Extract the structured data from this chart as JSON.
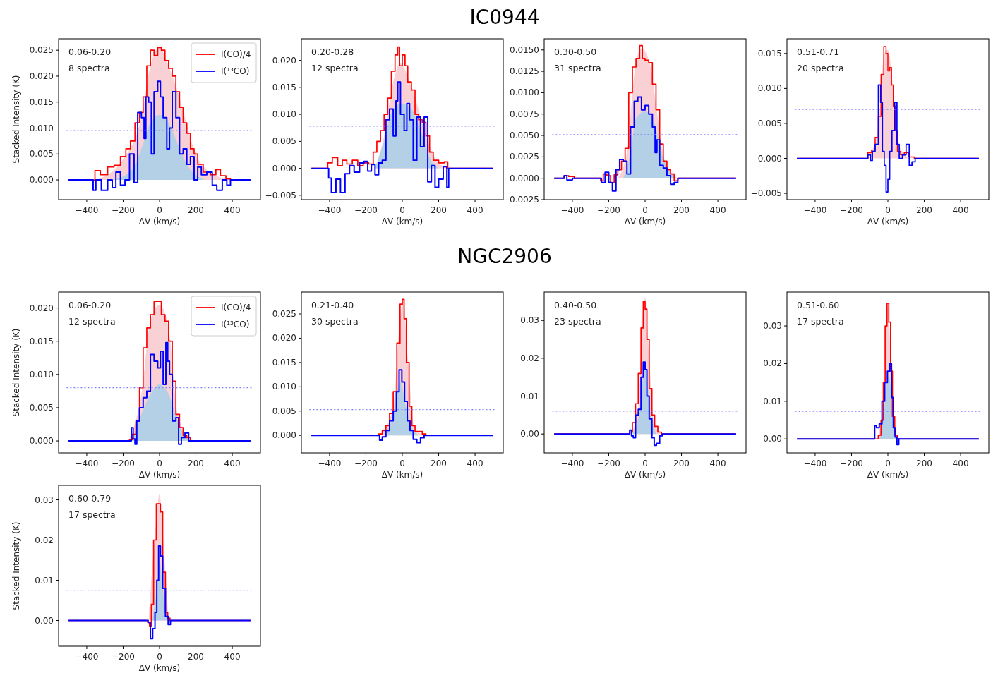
{
  "chart_data": [
    {
      "type": "step",
      "xlabel": "ΔV (km/s)",
      "ylabel": "Stacked Intensity (K)",
      "annotations": [
        "0.06-0.20",
        "8 spectra"
      ],
      "legend": "top right",
      "xlim": [
        -555,
        555
      ],
      "xticks": [
        -400,
        -200,
        0,
        200,
        400
      ],
      "ylim": [
        -0.0038,
        0.0272
      ],
      "yticks": [
        {
          "value": 0,
          "label": "0.000"
        },
        0.005,
        {
          "value": 0.01,
          "label": "0.010"
        },
        0.015,
        {
          "value": 0.02,
          "label": "0.020"
        },
        0.025
      ],
      "ref_lines": [
        {
          "axis": "y",
          "value": 0.0095,
          "color": "#8080ff",
          "line_style": "dotted"
        }
      ],
      "series": [
        {
          "type": "area",
          "color": "#f9d0d4",
          "x": [
            -350,
            -200,
            -100,
            -50,
            0,
            50,
            100,
            200,
            300,
            400
          ],
          "values": [
            0,
            0.004,
            0.012,
            0.022,
            0.0255,
            0.022,
            0.017,
            0.005,
            0.001,
            0
          ]
        },
        {
          "type": "area",
          "color": "#b4d0e6",
          "x": [
            -250,
            -150,
            -100,
            -50,
            0,
            50,
            100,
            150,
            250
          ],
          "values": [
            0,
            0.002,
            0.006,
            0.011,
            0.0125,
            0.011,
            0.007,
            0.003,
            0
          ]
        },
        {
          "name": "I(CO)/4",
          "color": "#ff0000",
          "x": [
            -500,
            -360,
            -350,
            -300,
            -270,
            -230,
            -200,
            -170,
            -150,
            -120,
            -100,
            -80,
            -60,
            -40,
            -20,
            0,
            20,
            40,
            60,
            80,
            100,
            120,
            140,
            160,
            180,
            200,
            220,
            260,
            300,
            320,
            350,
            380,
            400,
            500
          ],
          "values": [
            0,
            0,
            0.0018,
            0.001,
            0.0025,
            0.0028,
            0.0045,
            0.006,
            0.0075,
            0.011,
            0.013,
            0.016,
            0.022,
            0.025,
            0.024,
            0.0255,
            0.025,
            0.023,
            0.0215,
            0.02,
            0.017,
            0.014,
            0.011,
            0.009,
            0.006,
            0.005,
            0.003,
            0.0015,
            0.001,
            0.002,
            0.0008,
            0.0002,
            0,
            0
          ]
        },
        {
          "name": "I(¹³CO)",
          "color": "#0000ff",
          "x": [
            -500,
            -370,
            -360,
            -340,
            -300,
            -270,
            -250,
            -230,
            -200,
            -180,
            -150,
            -130,
            -110,
            -90,
            -80,
            -70,
            -50,
            -40,
            -20,
            0,
            10,
            30,
            50,
            60,
            80,
            100,
            120,
            140,
            160,
            180,
            200,
            220,
            240,
            280,
            300,
            330,
            360,
            380,
            400,
            500
          ],
          "values": [
            0,
            0,
            -0.002,
            0,
            -0.002,
            0,
            -0.0015,
            0.0015,
            -0.001,
            0,
            0.005,
            -0.0005,
            0.013,
            0.012,
            0.008,
            0.016,
            0.015,
            0.005,
            0.017,
            0.019,
            0.016,
            0.012,
            0.006,
            0.01,
            0.017,
            0.012,
            0.005,
            0.006,
            0.003,
            0.0045,
            0,
            0.0025,
            0.001,
            0.0015,
            -0.001,
            -0.002,
            0,
            -0.001,
            0,
            0
          ]
        }
      ]
    },
    {
      "type": "step",
      "title": "IC0944",
      "xlabel": "ΔV (km/s)",
      "annotations": [
        "0.20-0.28",
        "12 spectra"
      ],
      "xlim": [
        -555,
        555
      ],
      "xticks": [
        -400,
        -200,
        0,
        200,
        400
      ],
      "ylim": [
        -0.0058,
        0.024
      ],
      "yticks": [
        -0.005,
        {
          "value": 0,
          "label": "0.000"
        },
        0.005,
        {
          "value": 0.01,
          "label": "0.010"
        },
        0.015,
        {
          "value": 0.02,
          "label": "0.020"
        }
      ],
      "ref_lines": [
        {
          "axis": "y",
          "value": 0.0078,
          "color": "#8080ff",
          "line_style": "dotted"
        }
      ],
      "series": [
        {
          "type": "area",
          "color": "#f9d0d4",
          "x": [
            -150,
            -100,
            -50,
            -10,
            30,
            80,
            130,
            200,
            260
          ],
          "values": [
            0,
            0.006,
            0.016,
            0.0195,
            0.017,
            0.012,
            0.006,
            0.001,
            0
          ]
        },
        {
          "type": "area",
          "color": "#b4d0e6",
          "x": [
            -150,
            -100,
            -50,
            0,
            50,
            100,
            150,
            200
          ],
          "values": [
            0,
            0.005,
            0.011,
            0.012,
            0.011,
            0.007,
            0.002,
            0
          ]
        },
        {
          "color": "#ff0000",
          "x": [
            -500,
            -420,
            -400,
            -370,
            -340,
            -320,
            -290,
            -260,
            -230,
            -200,
            -170,
            -150,
            -130,
            -110,
            -90,
            -70,
            -50,
            -30,
            -20,
            -10,
            10,
            20,
            40,
            60,
            80,
            100,
            120,
            140,
            160,
            180,
            220,
            240,
            260,
            500
          ],
          "values": [
            0,
            0,
            0.001,
            0.002,
            0.0005,
            0.0015,
            0.0008,
            0.0015,
            0.0005,
            0.001,
            0.0008,
            0.003,
            0.005,
            0.007,
            0.01,
            0.013,
            0.018,
            0.021,
            0.0225,
            0.019,
            0.021,
            0.019,
            0.016,
            0.0145,
            0.01,
            0.009,
            0.0085,
            0.006,
            0.003,
            0.0015,
            0.001,
            0.0012,
            0,
            0
          ]
        },
        {
          "color": "#0000ff",
          "x": [
            -500,
            -410,
            -400,
            -380,
            -350,
            -330,
            -300,
            -280,
            -250,
            -220,
            -200,
            -180,
            -160,
            -140,
            -120,
            -100,
            -80,
            -60,
            -40,
            -30,
            -20,
            0,
            20,
            30,
            50,
            70,
            90,
            110,
            130,
            150,
            170,
            190,
            210,
            240,
            250,
            260,
            500
          ],
          "values": [
            0,
            0,
            -0.0018,
            -0.0045,
            -0.002,
            -0.0045,
            -0.001,
            0.0005,
            -0.0007,
            0.001,
            0.0013,
            -0.0005,
            0.0007,
            -0.0012,
            0.001,
            0.0015,
            0.009,
            0.011,
            0.006,
            0.0125,
            0.016,
            0.01,
            0.007,
            0.012,
            0.009,
            0.0015,
            0.0095,
            0.004,
            0.0095,
            -0.0025,
            0.0005,
            -0.0035,
            -0.002,
            0.0003,
            -0.0035,
            0,
            0
          ]
        }
      ]
    },
    {
      "type": "step",
      "xlabel": "ΔV (km/s)",
      "annotations": [
        "0.30-0.50",
        "31 spectra"
      ],
      "xlim": [
        -555,
        555
      ],
      "xticks": [
        -400,
        -200,
        0,
        200,
        400
      ],
      "ylim": [
        -0.0025,
        0.0163
      ],
      "yticks": [
        {
          "value": -0.0025,
          "label": "−0.0025"
        },
        {
          "value": 0,
          "label": "0.0000"
        },
        {
          "value": 0.0025,
          "label": "0.0025"
        },
        {
          "value": 0.005,
          "label": "0.0050"
        },
        {
          "value": 0.0075,
          "label": "0.0075"
        },
        {
          "value": 0.01,
          "label": "0.0100"
        },
        {
          "value": 0.0125,
          "label": "0.0125"
        },
        {
          "value": 0.015,
          "label": "0.0150"
        }
      ],
      "ref_lines": [
        {
          "axis": "y",
          "value": 0.0051,
          "color": "#8080ff",
          "line_style": "dotted"
        }
      ],
      "series": [
        {
          "type": "area",
          "color": "#f9d0d4",
          "x": [
            -150,
            -100,
            -60,
            -20,
            30,
            70,
            110,
            180
          ],
          "values": [
            0,
            0.003,
            0.012,
            0.0152,
            0.013,
            0.007,
            0.002,
            0
          ]
        },
        {
          "type": "area",
          "color": "#b4d0e6",
          "x": [
            -120,
            -80,
            -50,
            0,
            50,
            90,
            130,
            170
          ],
          "values": [
            0,
            0.003,
            0.007,
            0.0078,
            0.0065,
            0.003,
            0.001,
            0
          ]
        },
        {
          "color": "#ff0000",
          "x": [
            -500,
            -450,
            -440,
            -400,
            -380,
            -250,
            -240,
            -220,
            -200,
            -180,
            -160,
            -140,
            -120,
            -100,
            -80,
            -60,
            -40,
            -20,
            -10,
            10,
            30,
            50,
            70,
            90,
            110,
            130,
            150,
            170,
            190,
            500
          ],
          "values": [
            0,
            0,
            0.0003,
            0.0002,
            0,
            0,
            -0.0003,
            0.0005,
            0.0003,
            -0.0005,
            0.0004,
            0.001,
            0.002,
            0.0035,
            0.01,
            0.013,
            0.014,
            0.0155,
            0.014,
            0.0138,
            0.0135,
            0.011,
            0.008,
            0.004,
            0.002,
            0.001,
            0.0005,
            -0.0003,
            0,
            0
          ]
        },
        {
          "color": "#0000ff",
          "x": [
            -500,
            -450,
            -440,
            -420,
            -380,
            -250,
            -230,
            -210,
            -190,
            -170,
            -150,
            -130,
            -110,
            -90,
            -70,
            -50,
            -30,
            -10,
            10,
            30,
            50,
            60,
            70,
            90,
            110,
            130,
            150,
            170,
            190,
            500
          ],
          "values": [
            0,
            0,
            0.0003,
            -0.0002,
            0,
            0,
            -0.0005,
            0.0007,
            -0.0005,
            -0.0015,
            0.001,
            0.0022,
            0.002,
            0.0005,
            0.006,
            0.009,
            0.0095,
            0.008,
            0.0085,
            0.0075,
            0.006,
            0.003,
            0.0045,
            0.0015,
            0.0012,
            0.0003,
            -0.0007,
            -0.0005,
            0,
            0
          ]
        }
      ]
    },
    {
      "type": "step",
      "xlabel": "ΔV (km/s)",
      "annotations": [
        "0.51-0.71",
        "20 spectra"
      ],
      "xlim": [
        -555,
        555
      ],
      "xticks": [
        -400,
        -200,
        0,
        200,
        400
      ],
      "ylim": [
        -0.0059,
        0.0171
      ],
      "yticks": [
        -0.005,
        {
          "value": 0,
          "label": "0.000"
        },
        0.005,
        {
          "value": 0.01,
          "label": "0.010"
        },
        0.015
      ],
      "ref_lines": [
        {
          "axis": "y",
          "value": 0.007,
          "color": "#8080ff",
          "line_style": "dotted"
        }
      ],
      "series": [
        {
          "type": "area",
          "color": "#f9d0d4",
          "x": [
            -110,
            -50,
            -20,
            0,
            30,
            60,
            120
          ],
          "values": [
            0,
            0.005,
            0.015,
            0.0155,
            0.01,
            0.002,
            0
          ]
        },
        {
          "color": "#ff0000",
          "x": [
            -500,
            -120,
            -100,
            -80,
            -60,
            -45,
            -30,
            -15,
            -5,
            5,
            15,
            25,
            35,
            45,
            60,
            80,
            100,
            130,
            160,
            500
          ],
          "values": [
            0,
            0,
            0.0008,
            0.0012,
            0.003,
            0.006,
            0.012,
            0.016,
            0.015,
            0.0125,
            0.013,
            0.0105,
            0.0075,
            0.004,
            0.001,
            0.0005,
            0.0008,
            0.0002,
            0,
            0
          ]
        },
        {
          "color": "#0000ff",
          "x": [
            -500,
            -120,
            -100,
            -90,
            -80,
            -60,
            -45,
            -35,
            -25,
            -15,
            -5,
            5,
            15,
            30,
            45,
            55,
            70,
            90,
            110,
            125,
            140,
            160,
            500
          ],
          "values": [
            0,
            0,
            0.0005,
            -0.0003,
            0.001,
            0.002,
            0.0105,
            0.008,
            0.001,
            -0.001,
            -0.0048,
            -0.003,
            0.001,
            0.004,
            0.008,
            0.002,
            0,
            0.0005,
            0.002,
            -0.001,
            -0.0005,
            0,
            0
          ]
        }
      ]
    },
    {
      "type": "step",
      "xlabel": "ΔV (km/s)",
      "ylabel": "Stacked Intensity (K)",
      "annotations": [
        "0.06-0.20",
        "12 spectra"
      ],
      "legend": "top right",
      "xlim": [
        -555,
        555
      ],
      "xticks": [
        -400,
        -200,
        0,
        200,
        400
      ],
      "ylim": [
        -0.0018,
        0.0224
      ],
      "yticks": [
        {
          "value": 0,
          "label": "0.000"
        },
        0.005,
        {
          "value": 0.01,
          "label": "0.010"
        },
        0.015,
        {
          "value": 0.02,
          "label": "0.020"
        }
      ],
      "ref_lines": [
        {
          "axis": "y",
          "value": 0.008,
          "color": "#8080ff",
          "line_style": "dotted"
        }
      ],
      "series": [
        {
          "type": "area",
          "color": "#f9d0d4",
          "x": [
            -170,
            -100,
            -50,
            0,
            50,
            100,
            180
          ],
          "values": [
            0,
            0.007,
            0.018,
            0.0205,
            0.017,
            0.004,
            0
          ]
        },
        {
          "type": "area",
          "color": "#b4d0e6",
          "x": [
            -150,
            -100,
            -50,
            0,
            50,
            100,
            160
          ],
          "values": [
            0,
            0.004,
            0.007,
            0.0085,
            0.007,
            0.003,
            0
          ]
        },
        {
          "name": "I(CO)/4",
          "color": "#ff0000",
          "x": [
            -500,
            -170,
            -160,
            -140,
            -120,
            -100,
            -80,
            -60,
            -40,
            -20,
            0,
            20,
            40,
            60,
            80,
            100,
            120,
            140,
            160,
            180,
            500
          ],
          "values": [
            0,
            0,
            0.0002,
            0.001,
            0.003,
            0.008,
            0.014,
            0.017,
            0.019,
            0.021,
            0.021,
            0.019,
            0.018,
            0.015,
            0.009,
            0.004,
            0.002,
            0.0008,
            0.0005,
            0,
            0
          ]
        },
        {
          "name": "I(¹³CO)",
          "color": "#0000ff",
          "x": [
            -500,
            -160,
            -150,
            -140,
            -130,
            -120,
            -100,
            -80,
            -60,
            -40,
            -20,
            0,
            10,
            30,
            40,
            50,
            60,
            80,
            100,
            110,
            130,
            150,
            170,
            500
          ],
          "values": [
            0,
            0,
            0.002,
            0.0003,
            -0.0005,
            0.003,
            0.005,
            0.0065,
            0.0075,
            0.013,
            0.012,
            0.011,
            0.0135,
            0.0085,
            0.0148,
            0.012,
            0.01,
            0.003,
            0.0035,
            -0.0005,
            0.0005,
            0.0012,
            0,
            0
          ]
        }
      ]
    },
    {
      "type": "step",
      "title": "NGC2906",
      "xlabel": "ΔV (km/s)",
      "annotations": [
        "0.21-0.40",
        "30 spectra"
      ],
      "xlim": [
        -555,
        555
      ],
      "xticks": [
        -400,
        -200,
        0,
        200,
        400
      ],
      "ylim": [
        -0.0036,
        0.0295
      ],
      "yticks": [
        {
          "value": 0,
          "label": "0.000"
        },
        0.005,
        {
          "value": 0.01,
          "label": "0.010"
        },
        0.015,
        {
          "value": 0.02,
          "label": "0.020"
        },
        0.025
      ],
      "ref_lines": [
        {
          "axis": "y",
          "value": 0.0053,
          "color": "#8080ff",
          "line_style": "dotted"
        }
      ],
      "series": [
        {
          "type": "area",
          "color": "#f9d0d4",
          "x": [
            -120,
            -50,
            -10,
            5,
            30,
            70,
            140
          ],
          "values": [
            0,
            0.006,
            0.025,
            0.028,
            0.016,
            0.001,
            0
          ]
        },
        {
          "type": "area",
          "color": "#b4d0e6",
          "x": [
            -100,
            -50,
            -10,
            20,
            60,
            100
          ],
          "values": [
            0,
            0.004,
            0.011,
            0.006,
            0.001,
            0
          ]
        },
        {
          "color": "#ff0000",
          "x": [
            -500,
            -140,
            -120,
            -100,
            -80,
            -60,
            -40,
            -20,
            -5,
            5,
            15,
            30,
            45,
            60,
            80,
            100,
            120,
            140,
            500
          ],
          "values": [
            0,
            0,
            0.0003,
            0.001,
            0.002,
            0.0045,
            0.009,
            0.019,
            0.027,
            0.028,
            0.024,
            0.015,
            0.006,
            0.002,
            0.0008,
            0.0008,
            0.0003,
            0,
            0
          ]
        },
        {
          "color": "#0000ff",
          "x": [
            -500,
            -130,
            -120,
            -100,
            -80,
            -60,
            -40,
            -25,
            -10,
            5,
            20,
            35,
            50,
            70,
            90,
            110,
            130,
            500
          ],
          "values": [
            0,
            0,
            -0.001,
            -0.0003,
            0.001,
            0.003,
            0.005,
            0.009,
            0.0135,
            0.011,
            0.007,
            0.003,
            0.001,
            -0.0008,
            -0.0015,
            -0.0005,
            0,
            0
          ]
        }
      ]
    },
    {
      "type": "step",
      "xlabel": "ΔV (km/s)",
      "annotations": [
        "0.40-0.50",
        "23 spectra"
      ],
      "xlim": [
        -555,
        555
      ],
      "xticks": [
        -400,
        -200,
        0,
        200,
        400
      ],
      "ylim": [
        -0.005,
        0.0375
      ],
      "yticks": [
        {
          "value": 0,
          "label": "0.00"
        },
        0.01,
        0.02,
        0.03
      ],
      "ref_lines": [
        {
          "axis": "y",
          "value": 0.006,
          "color": "#8080ff",
          "line_style": "dotted"
        }
      ],
      "series": [
        {
          "type": "area",
          "color": "#f9d0d4",
          "x": [
            -80,
            -40,
            -10,
            0,
            20,
            50,
            90
          ],
          "values": [
            0,
            0.006,
            0.033,
            0.036,
            0.022,
            0.003,
            0
          ]
        },
        {
          "type": "area",
          "color": "#b4d0e6",
          "x": [
            -70,
            -30,
            0,
            30,
            60
          ],
          "values": [
            0,
            0.006,
            0.018,
            0.006,
            0
          ]
        },
        {
          "color": "#ff0000",
          "x": [
            -500,
            -90,
            -80,
            -60,
            -45,
            -30,
            -15,
            -5,
            5,
            15,
            30,
            45,
            60,
            80,
            100,
            500
          ],
          "values": [
            0,
            0,
            0.0005,
            0.003,
            0.008,
            0.016,
            0.028,
            0.035,
            0.033,
            0.025,
            0.012,
            0.005,
            0.002,
            0.0005,
            0,
            0
          ]
        },
        {
          "color": "#0000ff",
          "x": [
            -500,
            -90,
            -80,
            -70,
            -60,
            -45,
            -30,
            -15,
            -5,
            5,
            15,
            30,
            45,
            55,
            70,
            90,
            100,
            500
          ],
          "values": [
            0,
            0,
            0.001,
            -0.0005,
            -0.001,
            0.005,
            0.0065,
            0.015,
            0.019,
            0.017,
            0.01,
            0.004,
            -0.001,
            -0.003,
            -0.0025,
            -0.0005,
            0,
            0
          ]
        }
      ]
    },
    {
      "type": "step",
      "xlabel": "ΔV (km/s)",
      "annotations": [
        "0.51-0.60",
        "17 spectra"
      ],
      "xlim": [
        -555,
        555
      ],
      "xticks": [
        -400,
        -200,
        0,
        200,
        400
      ],
      "ylim": [
        -0.0037,
        0.039
      ],
      "yticks": [
        {
          "value": 0,
          "label": "0.00"
        },
        0.01,
        0.02,
        0.03
      ],
      "ref_lines": [
        {
          "axis": "y",
          "value": 0.0073,
          "color": "#8080ff",
          "line_style": "dotted"
        }
      ],
      "series": [
        {
          "type": "area",
          "color": "#f9d0d4",
          "x": [
            -60,
            -20,
            0,
            20,
            50
          ],
          "values": [
            0,
            0.012,
            0.036,
            0.015,
            0
          ]
        },
        {
          "type": "area",
          "color": "#b4d0e6",
          "x": [
            -50,
            -20,
            5,
            30,
            55
          ],
          "values": [
            0,
            0.008,
            0.017,
            0.005,
            0
          ]
        },
        {
          "color": "#ff0000",
          "x": [
            -500,
            -60,
            -45,
            -30,
            -20,
            -10,
            0,
            10,
            20,
            30,
            45,
            60,
            500
          ],
          "values": [
            0,
            0,
            0.001,
            0.005,
            0.015,
            0.03,
            0.036,
            0.031,
            0.018,
            0.006,
            0.001,
            0,
            0
          ]
        },
        {
          "color": "#0000ff",
          "x": [
            -500,
            -75,
            -70,
            -55,
            -40,
            -25,
            -10,
            5,
            15,
            25,
            35,
            45,
            55,
            65,
            500
          ],
          "values": [
            0,
            0,
            0.0035,
            0.003,
            0.004,
            0.01,
            0.015,
            0.018,
            0.02,
            0.011,
            0.003,
            0.0005,
            -0.0015,
            0,
            0
          ]
        }
      ]
    },
    {
      "type": "step",
      "xlabel": "ΔV (km/s)",
      "ylabel": "Stacked Intensity (K)",
      "annotations": [
        "0.60-0.79",
        "17 spectra"
      ],
      "xlim": [
        -555,
        555
      ],
      "xticks": [
        -400,
        -200,
        0,
        200,
        400
      ],
      "ylim": [
        -0.0064,
        0.0336
      ],
      "yticks": [
        {
          "value": 0,
          "label": "0.00"
        },
        0.01,
        0.02,
        0.03
      ],
      "ref_lines": [
        {
          "axis": "y",
          "value": 0.0075,
          "color": "#8080ff",
          "line_style": "dotted"
        }
      ],
      "series": [
        {
          "type": "area",
          "color": "#f9d0d4",
          "x": [
            -60,
            -20,
            0,
            20,
            50
          ],
          "values": [
            0,
            0.024,
            0.0315,
            0.02,
            0
          ]
        },
        {
          "type": "area",
          "color": "#b4d0e6",
          "x": [
            -40,
            -10,
            0,
            20,
            45
          ],
          "values": [
            0,
            0.01,
            0.015,
            0.007,
            0
          ]
        },
        {
          "color": "#ff0000",
          "x": [
            -500,
            -70,
            -60,
            -50,
            -40,
            -25,
            -10,
            0,
            10,
            25,
            40,
            50,
            65,
            500
          ],
          "values": [
            0,
            0,
            -0.0005,
            -0.0015,
            0.004,
            0.02,
            0.029,
            0.029,
            0.027,
            0.012,
            0.002,
            0.0006,
            0,
            0
          ]
        },
        {
          "color": "#0000ff",
          "x": [
            -500,
            -70,
            -55,
            -45,
            -30,
            -20,
            -10,
            0,
            10,
            25,
            40,
            55,
            65,
            500
          ],
          "values": [
            0,
            0,
            -0.0005,
            -0.0045,
            -0.002,
            0.002,
            0.01,
            0.0185,
            0.016,
            0.008,
            0.001,
            -0.001,
            0,
            0
          ]
        }
      ]
    }
  ]
}
